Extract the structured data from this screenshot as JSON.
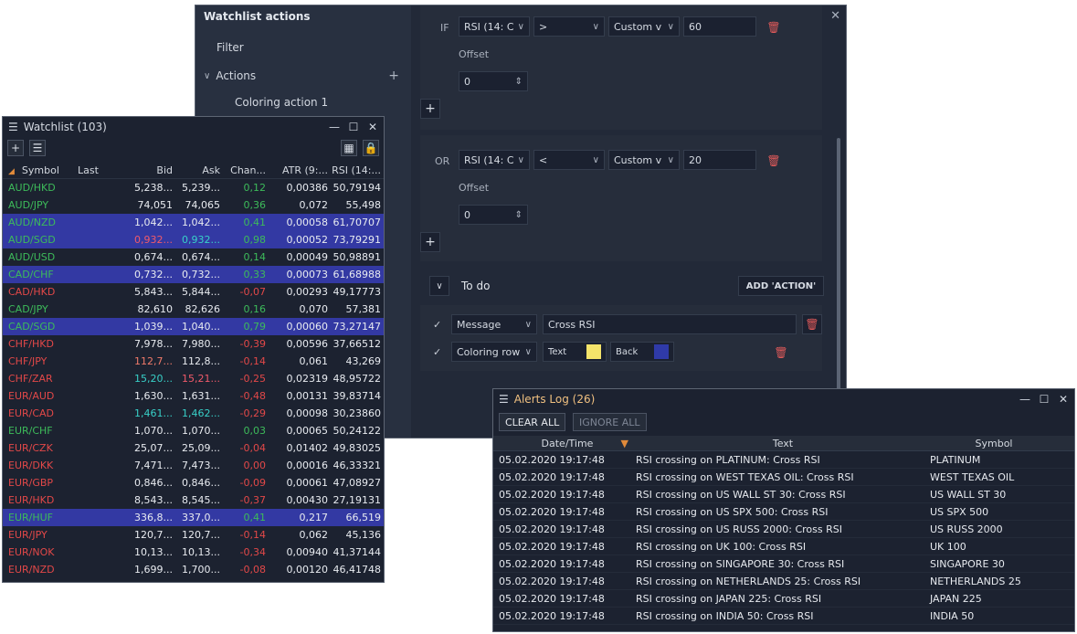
{
  "actions_window": {
    "title": "Watchlist actions",
    "tree": {
      "filter": "Filter",
      "actions": "Actions",
      "coloring_action": "Coloring action 1"
    },
    "conditions": [
      {
        "prefix": "IF",
        "indicator": "RSI (14: C",
        "operator": ">",
        "type": "Custom v",
        "value": "60",
        "offset_label": "Offset",
        "offset_value": "0"
      },
      {
        "prefix": "OR",
        "indicator": "RSI (14: C",
        "operator": "<",
        "type": "Custom v",
        "value": "20",
        "offset_label": "Offset",
        "offset_value": "0"
      }
    ],
    "todo": {
      "label": "To do",
      "add_action": "ADD 'ACTION'",
      "message_action": "Message",
      "message_text": "Cross RSI",
      "coloring_action": "Coloring row",
      "text_label": "Text",
      "back_label": "Back",
      "text_color": "#f5e46a",
      "back_color": "#2f3aa8"
    }
  },
  "watchlist": {
    "title": "Watchlist (103)",
    "columns": [
      "Symbol",
      "Last",
      "Bid",
      "Ask",
      "Chan...",
      "ATR (9:...",
      "RSI (14:..."
    ],
    "rows": [
      {
        "sym": "AUD/HKD",
        "dir": "up",
        "last": "",
        "bid": "5,238...",
        "ask": "5,239...",
        "chg": "0,12",
        "atr": "0,00386",
        "rsi": "50,79194",
        "sel": false
      },
      {
        "sym": "AUD/JPY",
        "dir": "up",
        "last": "",
        "bid": "74,051",
        "ask": "74,065",
        "chg": "0,36",
        "atr": "0,072",
        "rsi": "55,498",
        "sel": false
      },
      {
        "sym": "AUD/NZD",
        "dir": "up",
        "last": "",
        "bid": "1,042...",
        "ask": "1,042...",
        "chg": "0,41",
        "atr": "0,00058",
        "rsi": "61,70707",
        "sel": true
      },
      {
        "sym": "AUD/SGD",
        "dir": "up",
        "last": "",
        "bid": "0,932...",
        "ask": "0,932...",
        "chg": "0,98",
        "atr": "0,00052",
        "rsi": "73,79291",
        "sel": true,
        "bidc": "pk",
        "askc": "cy"
      },
      {
        "sym": "AUD/USD",
        "dir": "up",
        "last": "",
        "bid": "0,674...",
        "ask": "0,674...",
        "chg": "0,14",
        "atr": "0,00049",
        "rsi": "50,98891",
        "sel": false
      },
      {
        "sym": "CAD/CHF",
        "dir": "up",
        "last": "",
        "bid": "0,732...",
        "ask": "0,732...",
        "chg": "0,33",
        "atr": "0,00073",
        "rsi": "61,68988",
        "sel": true
      },
      {
        "sym": "CAD/HKD",
        "dir": "dn",
        "last": "",
        "bid": "5,843...",
        "ask": "5,844...",
        "chg": "-0,07",
        "atr": "0,00293",
        "rsi": "49,17773",
        "sel": false
      },
      {
        "sym": "CAD/JPY",
        "dir": "up",
        "last": "",
        "bid": "82,610",
        "ask": "82,626",
        "chg": "0,16",
        "atr": "0,070",
        "rsi": "57,381",
        "sel": false
      },
      {
        "sym": "CAD/SGD",
        "dir": "up",
        "last": "",
        "bid": "1,039...",
        "ask": "1,040...",
        "chg": "0,79",
        "atr": "0,00060",
        "rsi": "73,27147",
        "sel": true
      },
      {
        "sym": "CHF/HKD",
        "dir": "dn",
        "last": "",
        "bid": "7,978...",
        "ask": "7,980...",
        "chg": "-0,39",
        "atr": "0,00596",
        "rsi": "37,66512",
        "sel": false
      },
      {
        "sym": "CHF/JPY",
        "dir": "dn",
        "last": "",
        "bid": "112,7...",
        "ask": "112,8...",
        "chg": "-0,14",
        "atr": "0,061",
        "rsi": "43,269",
        "sel": false,
        "bidc": "rd2"
      },
      {
        "sym": "CHF/ZAR",
        "dir": "dn",
        "last": "",
        "bid": "15,20...",
        "ask": "15,21...",
        "chg": "-0,25",
        "atr": "0,02319",
        "rsi": "48,95722",
        "sel": false,
        "bidc": "cy",
        "askc": "pk"
      },
      {
        "sym": "EUR/AUD",
        "dir": "dn",
        "last": "",
        "bid": "1,630...",
        "ask": "1,631...",
        "chg": "-0,48",
        "atr": "0,00131",
        "rsi": "39,83714",
        "sel": false
      },
      {
        "sym": "EUR/CAD",
        "dir": "dn",
        "last": "",
        "bid": "1,461...",
        "ask": "1,462...",
        "chg": "-0,29",
        "atr": "0,00098",
        "rsi": "30,23860",
        "sel": false,
        "bidc": "cy",
        "askc": "cy"
      },
      {
        "sym": "EUR/CHF",
        "dir": "up",
        "last": "",
        "bid": "1,070...",
        "ask": "1,070...",
        "chg": "0,03",
        "atr": "0,00065",
        "rsi": "50,24122",
        "sel": false
      },
      {
        "sym": "EUR/CZK",
        "dir": "dn",
        "last": "",
        "bid": "25,07...",
        "ask": "25,09...",
        "chg": "-0,04",
        "atr": "0,01402",
        "rsi": "49,83025",
        "sel": false
      },
      {
        "sym": "EUR/DKK",
        "dir": "dn",
        "last": "",
        "bid": "7,471...",
        "ask": "7,473...",
        "chg": "0,00",
        "atr": "0,00016",
        "rsi": "46,33321",
        "sel": false
      },
      {
        "sym": "EUR/GBP",
        "dir": "dn",
        "last": "",
        "bid": "0,846...",
        "ask": "0,846...",
        "chg": "-0,09",
        "atr": "0,00061",
        "rsi": "47,08927",
        "sel": false
      },
      {
        "sym": "EUR/HKD",
        "dir": "dn",
        "last": "",
        "bid": "8,543...",
        "ask": "8,545...",
        "chg": "-0,37",
        "atr": "0,00430",
        "rsi": "27,19131",
        "sel": false
      },
      {
        "sym": "EUR/HUF",
        "dir": "up",
        "last": "",
        "bid": "336,8...",
        "ask": "337,0...",
        "chg": "0,41",
        "atr": "0,217",
        "rsi": "66,519",
        "sel": true
      },
      {
        "sym": "EUR/JPY",
        "dir": "dn",
        "last": "",
        "bid": "120,7...",
        "ask": "120,7...",
        "chg": "-0,14",
        "atr": "0,062",
        "rsi": "45,136",
        "sel": false
      },
      {
        "sym": "EUR/NOK",
        "dir": "dn",
        "last": "",
        "bid": "10,13...",
        "ask": "10,13...",
        "chg": "-0,34",
        "atr": "0,00940",
        "rsi": "41,37144",
        "sel": false
      },
      {
        "sym": "EUR/NZD",
        "dir": "dn",
        "last": "",
        "bid": "1,699...",
        "ask": "1,700...",
        "chg": "-0,08",
        "atr": "0,00120",
        "rsi": "46,41748",
        "sel": false
      }
    ]
  },
  "alerts": {
    "title": "Alerts Log (26)",
    "clear_all": "CLEAR ALL",
    "ignore_all": "IGNORE ALL",
    "columns": [
      "Date/Time",
      "Text",
      "Symbol"
    ],
    "rows": [
      {
        "dt": "05.02.2020 19:17:48",
        "text": "RSI crossing on PLATINUM: Cross RSI",
        "sym": "PLATINUM"
      },
      {
        "dt": "05.02.2020 19:17:48",
        "text": "RSI crossing on WEST TEXAS OIL: Cross RSI",
        "sym": "WEST TEXAS OIL"
      },
      {
        "dt": "05.02.2020 19:17:48",
        "text": "RSI crossing on US WALL ST 30: Cross RSI",
        "sym": "US WALL ST 30"
      },
      {
        "dt": "05.02.2020 19:17:48",
        "text": "RSI crossing on US SPX 500: Cross RSI",
        "sym": "US SPX 500"
      },
      {
        "dt": "05.02.2020 19:17:48",
        "text": "RSI crossing on US RUSS 2000: Cross RSI",
        "sym": "US RUSS 2000"
      },
      {
        "dt": "05.02.2020 19:17:48",
        "text": "RSI crossing on UK 100: Cross RSI",
        "sym": "UK 100"
      },
      {
        "dt": "05.02.2020 19:17:48",
        "text": "RSI crossing on SINGAPORE 30: Cross RSI",
        "sym": "SINGAPORE 30"
      },
      {
        "dt": "05.02.2020 19:17:48",
        "text": "RSI crossing on NETHERLANDS 25: Cross RSI",
        "sym": "NETHERLANDS 25"
      },
      {
        "dt": "05.02.2020 19:17:48",
        "text": "RSI crossing on JAPAN 225: Cross RSI",
        "sym": "JAPAN 225"
      },
      {
        "dt": "05.02.2020 19:17:48",
        "text": "RSI crossing on INDIA 50: Cross RSI",
        "sym": "INDIA 50"
      }
    ]
  }
}
